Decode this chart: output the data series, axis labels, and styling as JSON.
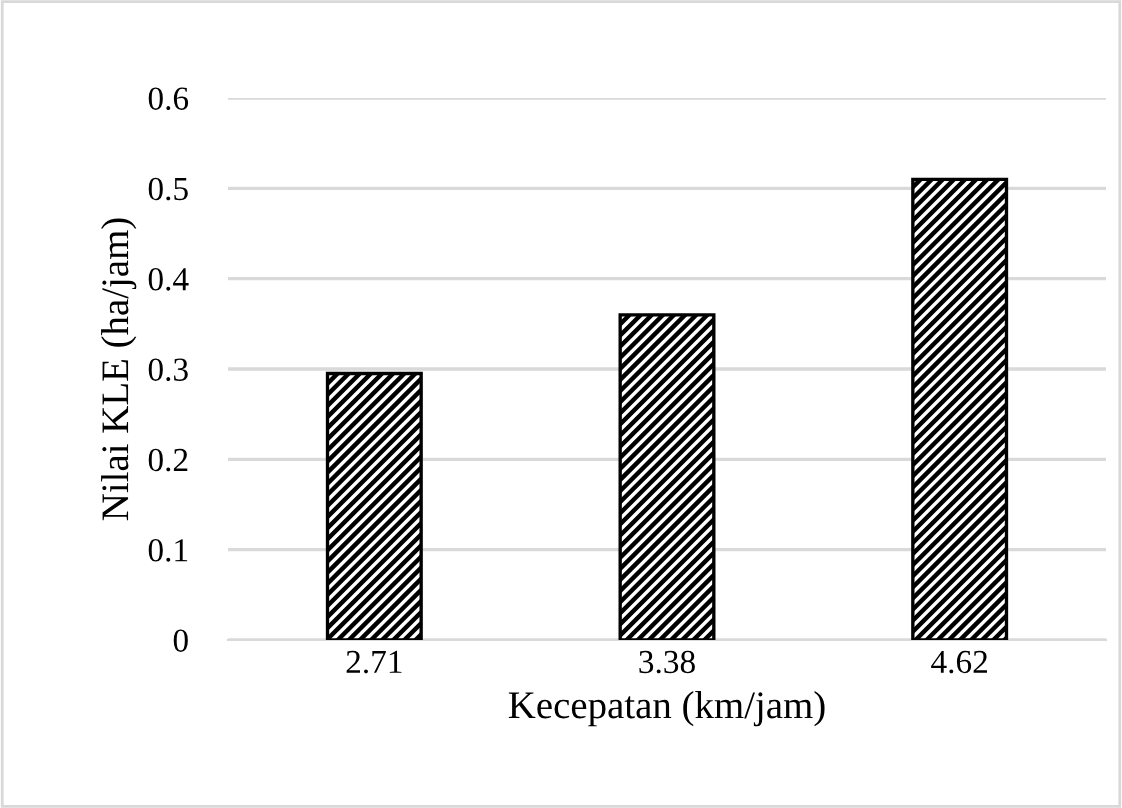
{
  "chart_data": {
    "type": "bar",
    "xlabel": "Kecepatan (km/jam)",
    "ylabel": "Nilai KLE (ha/jam)",
    "categories": [
      "2.71",
      "3.38",
      "4.62"
    ],
    "values": [
      0.295,
      0.36,
      0.51
    ],
    "color": "#000000",
    "ylim": [
      0,
      0.6
    ],
    "yticks": [
      0,
      0.1,
      0.2,
      0.3,
      0.4,
      0.5,
      0.6
    ],
    "grid": "y"
  }
}
